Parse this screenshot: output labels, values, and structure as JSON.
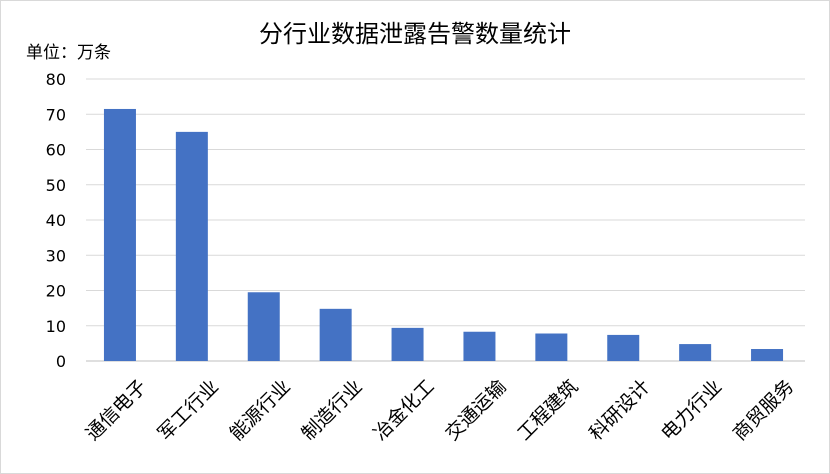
{
  "chart_data": {
    "type": "bar",
    "title": "分行业数据泄露告警数量统计",
    "unit_label": "单位：万条",
    "categories": [
      "通信电子",
      "军工行业",
      "能源行业",
      "制造行业",
      "冶金化工",
      "交通运输",
      "工程建筑",
      "科研设计",
      "电力行业",
      "商贸服务"
    ],
    "values": [
      71.5,
      65,
      19.5,
      14.8,
      9.4,
      8.3,
      7.8,
      7.4,
      4.8,
      3.4
    ],
    "ylim": [
      0,
      80
    ],
    "yticks": [
      0,
      10,
      20,
      30,
      40,
      50,
      60,
      70,
      80
    ],
    "grid": true,
    "legend": "none",
    "bar_color": "#4472C4",
    "grid_color": "#d9d9d9"
  }
}
